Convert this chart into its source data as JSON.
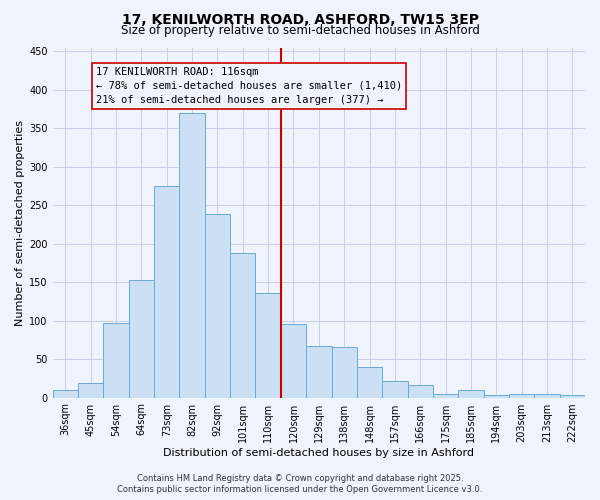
{
  "title": "17, KENILWORTH ROAD, ASHFORD, TW15 3EP",
  "subtitle": "Size of property relative to semi-detached houses in Ashford",
  "xlabel": "Distribution of semi-detached houses by size in Ashford",
  "ylabel": "Number of semi-detached properties",
  "categories": [
    "36sqm",
    "45sqm",
    "54sqm",
    "64sqm",
    "73sqm",
    "82sqm",
    "92sqm",
    "101sqm",
    "110sqm",
    "120sqm",
    "129sqm",
    "138sqm",
    "148sqm",
    "157sqm",
    "166sqm",
    "175sqm",
    "185sqm",
    "194sqm",
    "203sqm",
    "213sqm",
    "222sqm"
  ],
  "values": [
    10,
    19,
    97,
    153,
    275,
    370,
    238,
    188,
    136,
    96,
    67,
    66,
    40,
    22,
    16,
    5,
    10,
    3,
    5,
    5,
    3
  ],
  "bar_color": "#cce0f5",
  "bar_edge_color": "#6aaad4",
  "marker_label": "17 KENILWORTH ROAD: 116sqm",
  "marker_line_color": "#cc0000",
  "annotation_line1": "← 78% of semi-detached houses are smaller (1,410)",
  "annotation_line2": "21% of semi-detached houses are larger (377) →",
  "annotation_box_edge_color": "#cc0000",
  "ylim": [
    0,
    455
  ],
  "yticks": [
    0,
    50,
    100,
    150,
    200,
    250,
    300,
    350,
    400,
    450
  ],
  "footer1": "Contains HM Land Registry data © Crown copyright and database right 2025.",
  "footer2": "Contains public sector information licensed under the Open Government Licence v3.0.",
  "bg_color": "#eef3fc",
  "grid_color": "#c5d0e8",
  "title_fontsize": 10,
  "subtitle_fontsize": 8.5,
  "axis_label_fontsize": 8,
  "tick_fontsize": 7,
  "footer_fontsize": 6,
  "annotation_fontsize": 7.5
}
